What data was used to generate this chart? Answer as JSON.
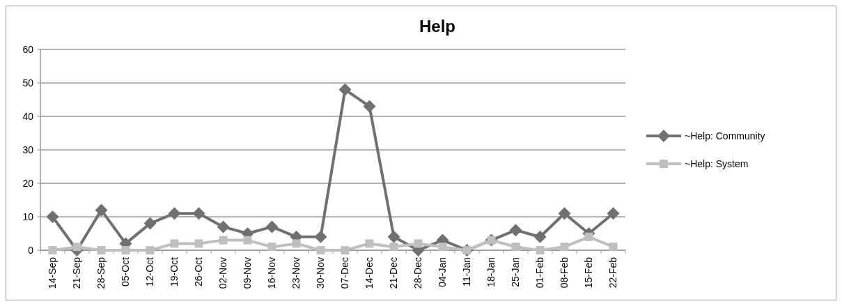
{
  "chart_data": {
    "type": "line",
    "title": "Help",
    "categories": [
      "14-Sep",
      "21-Sep",
      "28-Sep",
      "05-Oct",
      "12-Oct",
      "19-Oct",
      "26-Oct",
      "02-Nov",
      "09-Nov",
      "16-Nov",
      "23-Nov",
      "30-Nov",
      "07-Dec",
      "14-Dec",
      "21-Dec",
      "28-Dec",
      "04-Jan",
      "11-Jan",
      "18-Jan",
      "25-Jan",
      "01-Feb",
      "08-Feb",
      "15-Feb",
      "22-Feb"
    ],
    "series": [
      {
        "name": "~Help: Community",
        "color": "#707070",
        "marker": "diamond",
        "values": [
          10,
          0,
          12,
          2,
          8,
          11,
          11,
          7,
          5,
          7,
          4,
          4,
          48,
          43,
          4,
          0,
          3,
          0,
          3,
          6,
          4,
          11,
          5,
          11
        ]
      },
      {
        "name": "~Help: System",
        "color": "#bfbfbf",
        "marker": "square",
        "values": [
          0,
          1,
          0,
          0,
          0,
          2,
          2,
          3,
          3,
          1,
          2,
          0,
          0,
          2,
          1,
          2,
          1,
          0,
          3,
          1,
          0,
          1,
          4,
          1
        ]
      }
    ],
    "ylim": [
      0,
      60
    ],
    "yticks": [
      0,
      10,
      20,
      30,
      40,
      50,
      60
    ],
    "grid": "y",
    "legend": "right"
  }
}
